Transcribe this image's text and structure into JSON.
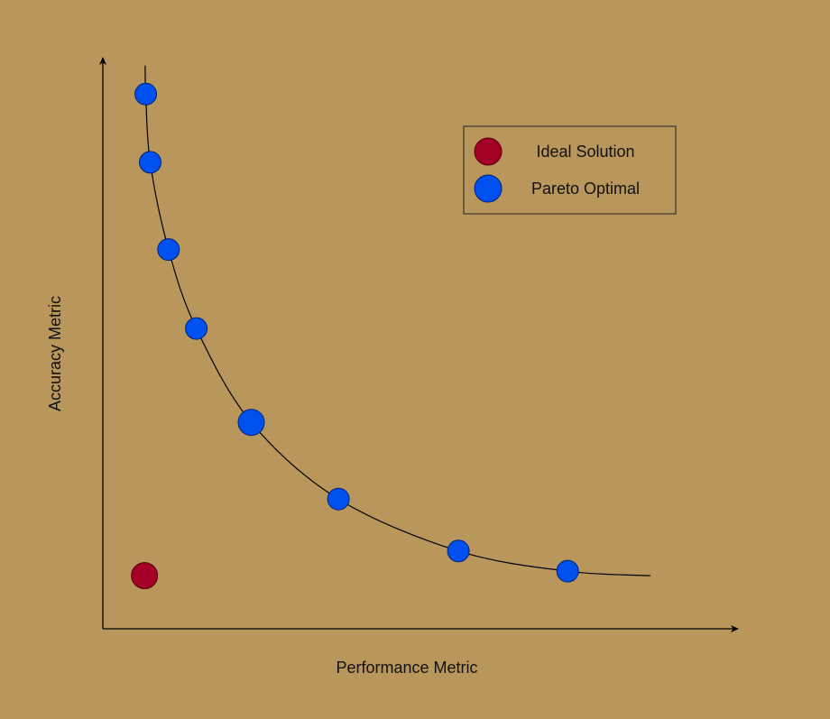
{
  "chart_data": {
    "type": "scatter",
    "title": "",
    "xlabel": "Performance Metric",
    "ylabel": "Accuracy Metric",
    "xlim": [
      0,
      100
    ],
    "ylim": [
      0,
      100
    ],
    "grid": false,
    "legend": {
      "placement": "top-right",
      "entries": [
        "Ideal Solution",
        "Pareto Optimal"
      ]
    },
    "series": [
      {
        "name": "Ideal Solution",
        "color": "#A20025",
        "points": [
          {
            "x": 6.6,
            "y": 9.5
          }
        ]
      },
      {
        "name": "Pareto Optimal",
        "color": "#0050EF",
        "points": [
          {
            "x": 6.8,
            "y": 95.6
          },
          {
            "x": 7.5,
            "y": 83.4
          },
          {
            "x": 10.4,
            "y": 67.8
          },
          {
            "x": 14.8,
            "y": 53.7
          },
          {
            "x": 23.5,
            "y": 36.9
          },
          {
            "x": 37.3,
            "y": 23.2
          },
          {
            "x": 56.3,
            "y": 13.9
          },
          {
            "x": 73.6,
            "y": 10.3
          }
        ]
      }
    ],
    "frontier_curve": {
      "x": [
        6.7,
        6.8,
        7.5,
        10.4,
        14.8,
        23.5,
        37.3,
        56.3,
        73.6,
        86.7
      ],
      "y": [
        100.7,
        95.6,
        83.4,
        67.8,
        53.7,
        36.9,
        23.2,
        13.9,
        10.3,
        9.5
      ]
    }
  },
  "colors": {
    "background": "#B9965B",
    "ideal": "#A20025",
    "pareto": "#0050EF",
    "axis": "#000000"
  }
}
